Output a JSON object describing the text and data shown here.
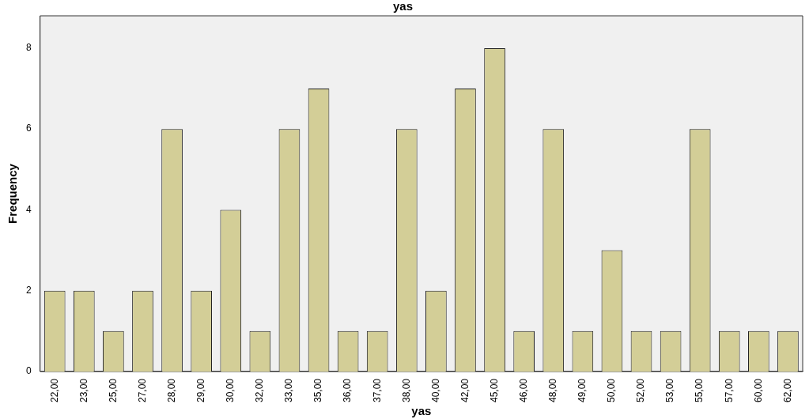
{
  "chart_data": {
    "type": "bar",
    "title": "yas",
    "xlabel": "yas",
    "ylabel": "Frequency",
    "categories": [
      "22,00",
      "23,00",
      "25,00",
      "27,00",
      "28,00",
      "29,00",
      "30,00",
      "32,00",
      "33,00",
      "35,00",
      "36,00",
      "37,00",
      "38,00",
      "40,00",
      "42,00",
      "45,00",
      "46,00",
      "48,00",
      "49,00",
      "50,00",
      "52,00",
      "53,00",
      "55,00",
      "57,00",
      "60,00",
      "62,00"
    ],
    "values": [
      2,
      2,
      1,
      2,
      6,
      2,
      4,
      1,
      6,
      7,
      1,
      1,
      6,
      2,
      7,
      8,
      1,
      6,
      1,
      3,
      1,
      1,
      6,
      1,
      1,
      1
    ],
    "color": "#d3ce97",
    "ylim": [
      0,
      8.8
    ],
    "yticks": [
      0,
      2,
      4,
      6,
      8
    ],
    "grid": false,
    "legend": false
  }
}
